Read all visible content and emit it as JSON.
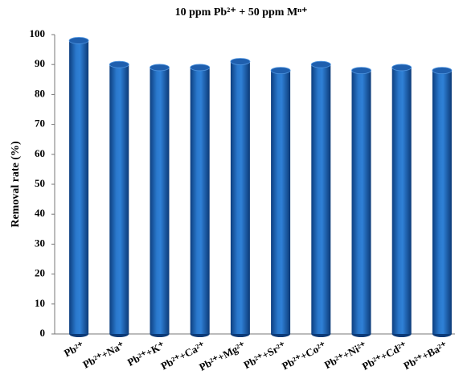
{
  "chart_data": {
    "type": "bar",
    "title": "10 ppm Pb²⁺ + 50 ppm Mⁿ⁺",
    "y_label": "Removal rate (%)",
    "categories": [
      "Pb²⁺",
      "Pb²⁺+Na⁺",
      "Pb²⁺+K⁺",
      "Pb²⁺+Ca²⁺",
      "Pb²⁺+Mg²⁺",
      "Pb²⁺+Sr²⁺",
      "Pb²⁺+Co²⁺",
      "Pb²⁺+Ni²⁺",
      "Pb²⁺+Cd²⁺",
      "Pb²⁺+Ba²⁺"
    ],
    "values": [
      98,
      90,
      89,
      89,
      91,
      88,
      90,
      88,
      89,
      88
    ],
    "color": "#1f5fae",
    "ylim": [
      0,
      100
    ],
    "yticks": [
      0,
      10,
      20,
      30,
      40,
      50,
      60,
      70,
      80,
      90,
      100
    ],
    "grid": false
  }
}
